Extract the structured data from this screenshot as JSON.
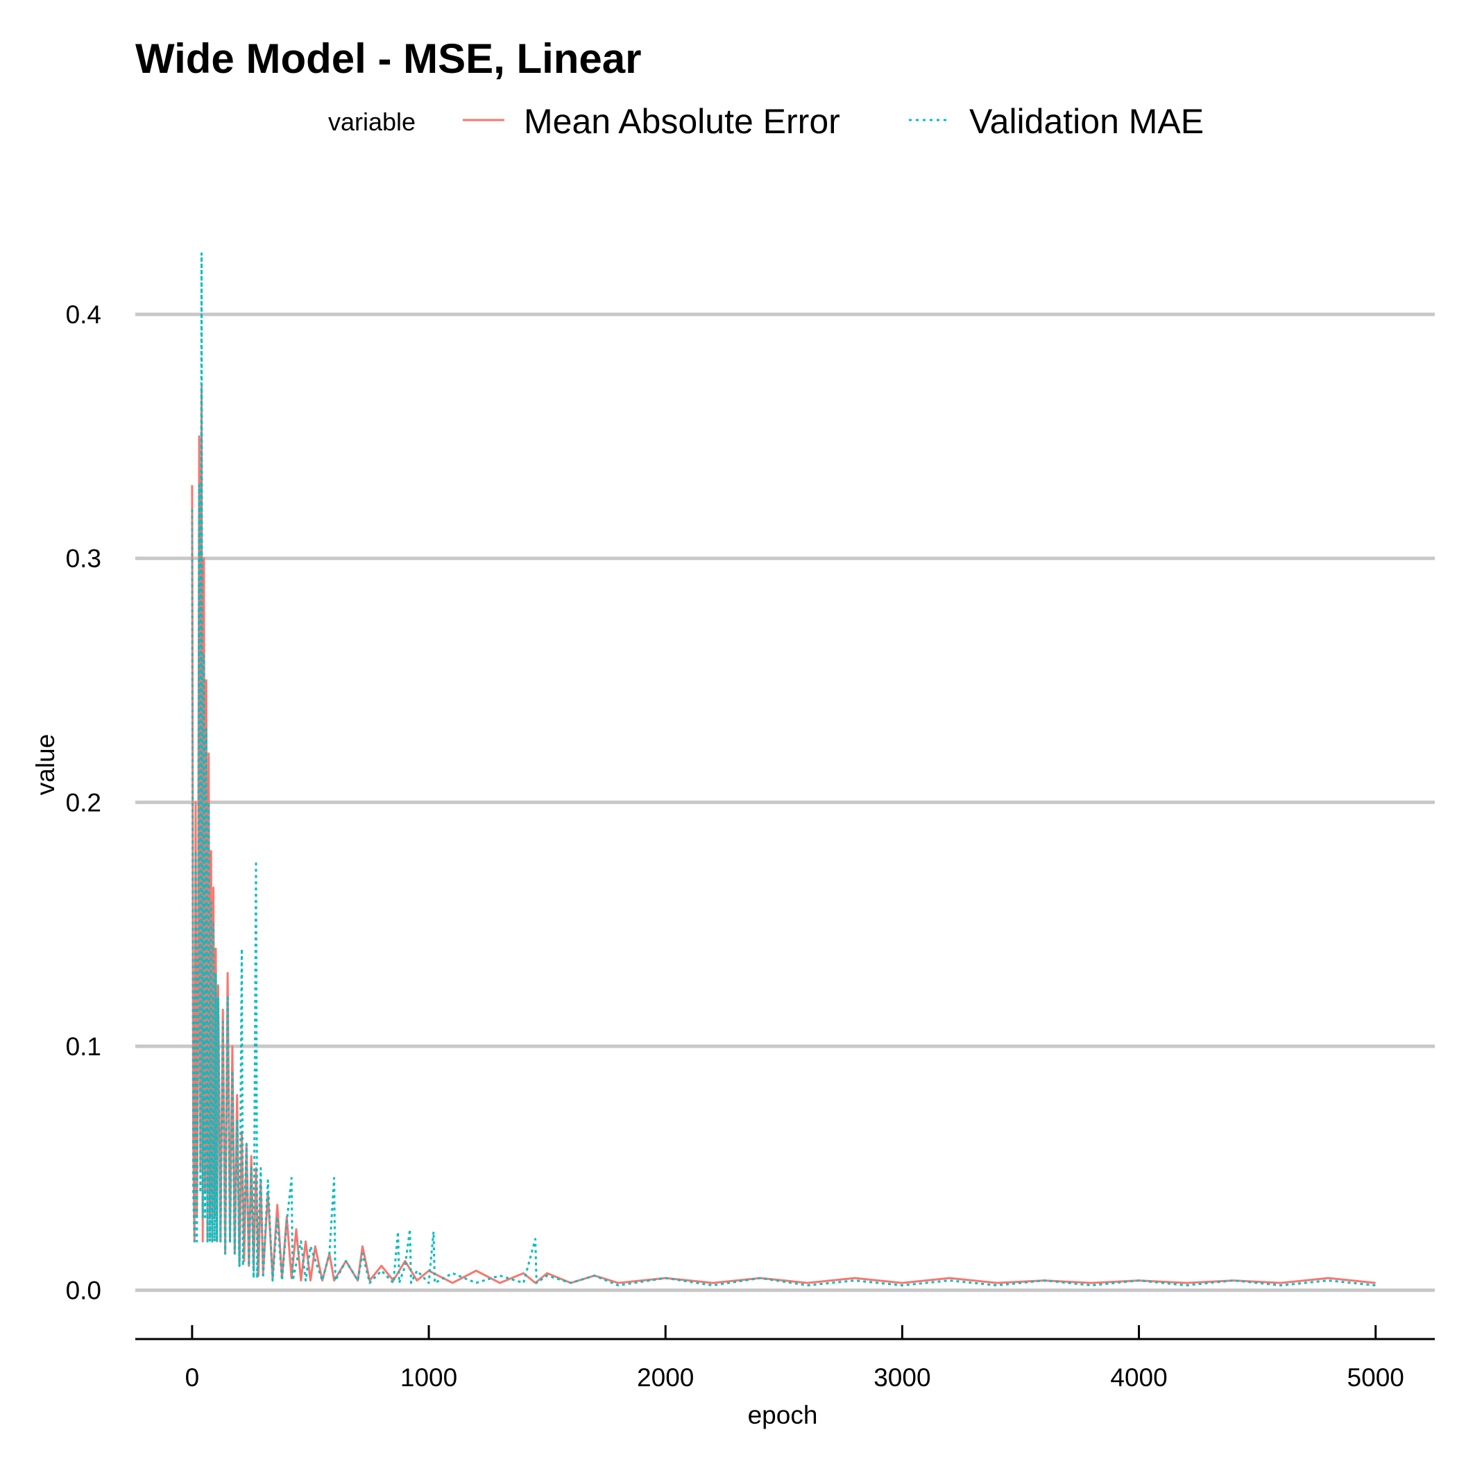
{
  "chart_data": {
    "type": "line",
    "title": "Wide Model - MSE, Linear",
    "xlabel": "epoch",
    "ylabel": "value",
    "xlim": [
      -240,
      5250
    ],
    "ylim": [
      -0.02,
      0.435
    ],
    "x_ticks": [
      0,
      1000,
      2000,
      3000,
      4000,
      5000
    ],
    "x_tick_labels": [
      "0",
      "1000",
      "2000",
      "3000",
      "4000",
      "5000"
    ],
    "y_ticks": [
      0.0,
      0.1,
      0.2,
      0.3,
      0.4
    ],
    "y_tick_labels": [
      "0.0",
      "0.1",
      "0.2",
      "0.3",
      "0.4"
    ],
    "grid": "horizontal-major",
    "legend": {
      "title": "variable",
      "position": "top"
    },
    "series": [
      {
        "name": "Mean Absolute Error",
        "color": "#F8766D",
        "dash": "solid",
        "points": [
          [
            0,
            0.33
          ],
          [
            5,
            0.06
          ],
          [
            10,
            0.02
          ],
          [
            15,
            0.2
          ],
          [
            20,
            0.03
          ],
          [
            25,
            0.09
          ],
          [
            30,
            0.35
          ],
          [
            35,
            0.05
          ],
          [
            40,
            0.37
          ],
          [
            45,
            0.02
          ],
          [
            50,
            0.3
          ],
          [
            55,
            0.04
          ],
          [
            60,
            0.25
          ],
          [
            65,
            0.02
          ],
          [
            70,
            0.22
          ],
          [
            75,
            0.03
          ],
          [
            80,
            0.18
          ],
          [
            85,
            0.02
          ],
          [
            90,
            0.165
          ],
          [
            95,
            0.03
          ],
          [
            100,
            0.14
          ],
          [
            105,
            0.02
          ],
          [
            110,
            0.125
          ],
          [
            120,
            0.02
          ],
          [
            130,
            0.115
          ],
          [
            140,
            0.015
          ],
          [
            150,
            0.13
          ],
          [
            160,
            0.02
          ],
          [
            170,
            0.1
          ],
          [
            180,
            0.015
          ],
          [
            190,
            0.08
          ],
          [
            200,
            0.01
          ],
          [
            210,
            0.065
          ],
          [
            220,
            0.012
          ],
          [
            230,
            0.06
          ],
          [
            240,
            0.01
          ],
          [
            250,
            0.055
          ],
          [
            260,
            0.008
          ],
          [
            270,
            0.05
          ],
          [
            280,
            0.006
          ],
          [
            290,
            0.045
          ],
          [
            300,
            0.007
          ],
          [
            320,
            0.04
          ],
          [
            340,
            0.005
          ],
          [
            360,
            0.035
          ],
          [
            380,
            0.005
          ],
          [
            400,
            0.03
          ],
          [
            420,
            0.005
          ],
          [
            440,
            0.025
          ],
          [
            460,
            0.004
          ],
          [
            480,
            0.02
          ],
          [
            500,
            0.004
          ],
          [
            520,
            0.018
          ],
          [
            550,
            0.004
          ],
          [
            580,
            0.015
          ],
          [
            600,
            0.004
          ],
          [
            650,
            0.012
          ],
          [
            700,
            0.004
          ],
          [
            720,
            0.018
          ],
          [
            750,
            0.004
          ],
          [
            800,
            0.01
          ],
          [
            850,
            0.004
          ],
          [
            900,
            0.012
          ],
          [
            950,
            0.004
          ],
          [
            1000,
            0.008
          ],
          [
            1100,
            0.003
          ],
          [
            1200,
            0.008
          ],
          [
            1300,
            0.003
          ],
          [
            1400,
            0.007
          ],
          [
            1450,
            0.003
          ],
          [
            1500,
            0.007
          ],
          [
            1600,
            0.003
          ],
          [
            1700,
            0.006
          ],
          [
            1800,
            0.003
          ],
          [
            2000,
            0.005
          ],
          [
            2200,
            0.003
          ],
          [
            2400,
            0.005
          ],
          [
            2600,
            0.003
          ],
          [
            2800,
            0.005
          ],
          [
            3000,
            0.003
          ],
          [
            3200,
            0.005
          ],
          [
            3400,
            0.003
          ],
          [
            3600,
            0.004
          ],
          [
            3800,
            0.003
          ],
          [
            4000,
            0.004
          ],
          [
            4200,
            0.003
          ],
          [
            4400,
            0.004
          ],
          [
            4600,
            0.003
          ],
          [
            4800,
            0.005
          ],
          [
            5000,
            0.003
          ]
        ]
      },
      {
        "name": "Validation MAE",
        "color": "#00BFC4",
        "dash": "dotted",
        "points": [
          [
            0,
            0.32
          ],
          [
            5,
            0.04
          ],
          [
            10,
            0.02
          ],
          [
            15,
            0.18
          ],
          [
            20,
            0.02
          ],
          [
            25,
            0.1
          ],
          [
            30,
            0.33
          ],
          [
            35,
            0.04
          ],
          [
            40,
            0.425
          ],
          [
            45,
            0.03
          ],
          [
            50,
            0.26
          ],
          [
            55,
            0.03
          ],
          [
            60,
            0.23
          ],
          [
            65,
            0.02
          ],
          [
            70,
            0.2
          ],
          [
            75,
            0.02
          ],
          [
            80,
            0.16
          ],
          [
            85,
            0.02
          ],
          [
            90,
            0.15
          ],
          [
            95,
            0.02
          ],
          [
            100,
            0.13
          ],
          [
            105,
            0.02
          ],
          [
            110,
            0.12
          ],
          [
            120,
            0.02
          ],
          [
            130,
            0.11
          ],
          [
            140,
            0.015
          ],
          [
            150,
            0.12
          ],
          [
            160,
            0.02
          ],
          [
            170,
            0.09
          ],
          [
            180,
            0.015
          ],
          [
            190,
            0.07
          ],
          [
            200,
            0.01
          ],
          [
            210,
            0.14
          ],
          [
            215,
            0.01
          ],
          [
            230,
            0.06
          ],
          [
            240,
            0.01
          ],
          [
            250,
            0.05
          ],
          [
            260,
            0.005
          ],
          [
            270,
            0.176
          ],
          [
            275,
            0.005
          ],
          [
            290,
            0.05
          ],
          [
            300,
            0.005
          ],
          [
            320,
            0.045
          ],
          [
            340,
            0.004
          ],
          [
            360,
            0.03
          ],
          [
            380,
            0.004
          ],
          [
            400,
            0.028
          ],
          [
            420,
            0.046
          ],
          [
            425,
            0.004
          ],
          [
            460,
            0.02
          ],
          [
            480,
            0.004
          ],
          [
            500,
            0.018
          ],
          [
            550,
            0.004
          ],
          [
            580,
            0.015
          ],
          [
            600,
            0.046
          ],
          [
            605,
            0.004
          ],
          [
            650,
            0.012
          ],
          [
            700,
            0.004
          ],
          [
            720,
            0.015
          ],
          [
            750,
            0.003
          ],
          [
            800,
            0.008
          ],
          [
            850,
            0.003
          ],
          [
            870,
            0.024
          ],
          [
            875,
            0.003
          ],
          [
            900,
            0.01
          ],
          [
            920,
            0.025
          ],
          [
            925,
            0.003
          ],
          [
            950,
            0.008
          ],
          [
            1000,
            0.003
          ],
          [
            1020,
            0.024
          ],
          [
            1025,
            0.003
          ],
          [
            1100,
            0.007
          ],
          [
            1200,
            0.003
          ],
          [
            1300,
            0.006
          ],
          [
            1400,
            0.003
          ],
          [
            1450,
            0.021
          ],
          [
            1455,
            0.003
          ],
          [
            1500,
            0.006
          ],
          [
            1600,
            0.003
          ],
          [
            1700,
            0.006
          ],
          [
            1800,
            0.002
          ],
          [
            2000,
            0.005
          ],
          [
            2200,
            0.002
          ],
          [
            2400,
            0.005
          ],
          [
            2600,
            0.002
          ],
          [
            2800,
            0.004
          ],
          [
            3000,
            0.002
          ],
          [
            3200,
            0.004
          ],
          [
            3400,
            0.002
          ],
          [
            3600,
            0.004
          ],
          [
            3800,
            0.002
          ],
          [
            4000,
            0.004
          ],
          [
            4200,
            0.002
          ],
          [
            4400,
            0.004
          ],
          [
            4600,
            0.002
          ],
          [
            4800,
            0.004
          ],
          [
            5000,
            0.002
          ]
        ]
      }
    ]
  }
}
